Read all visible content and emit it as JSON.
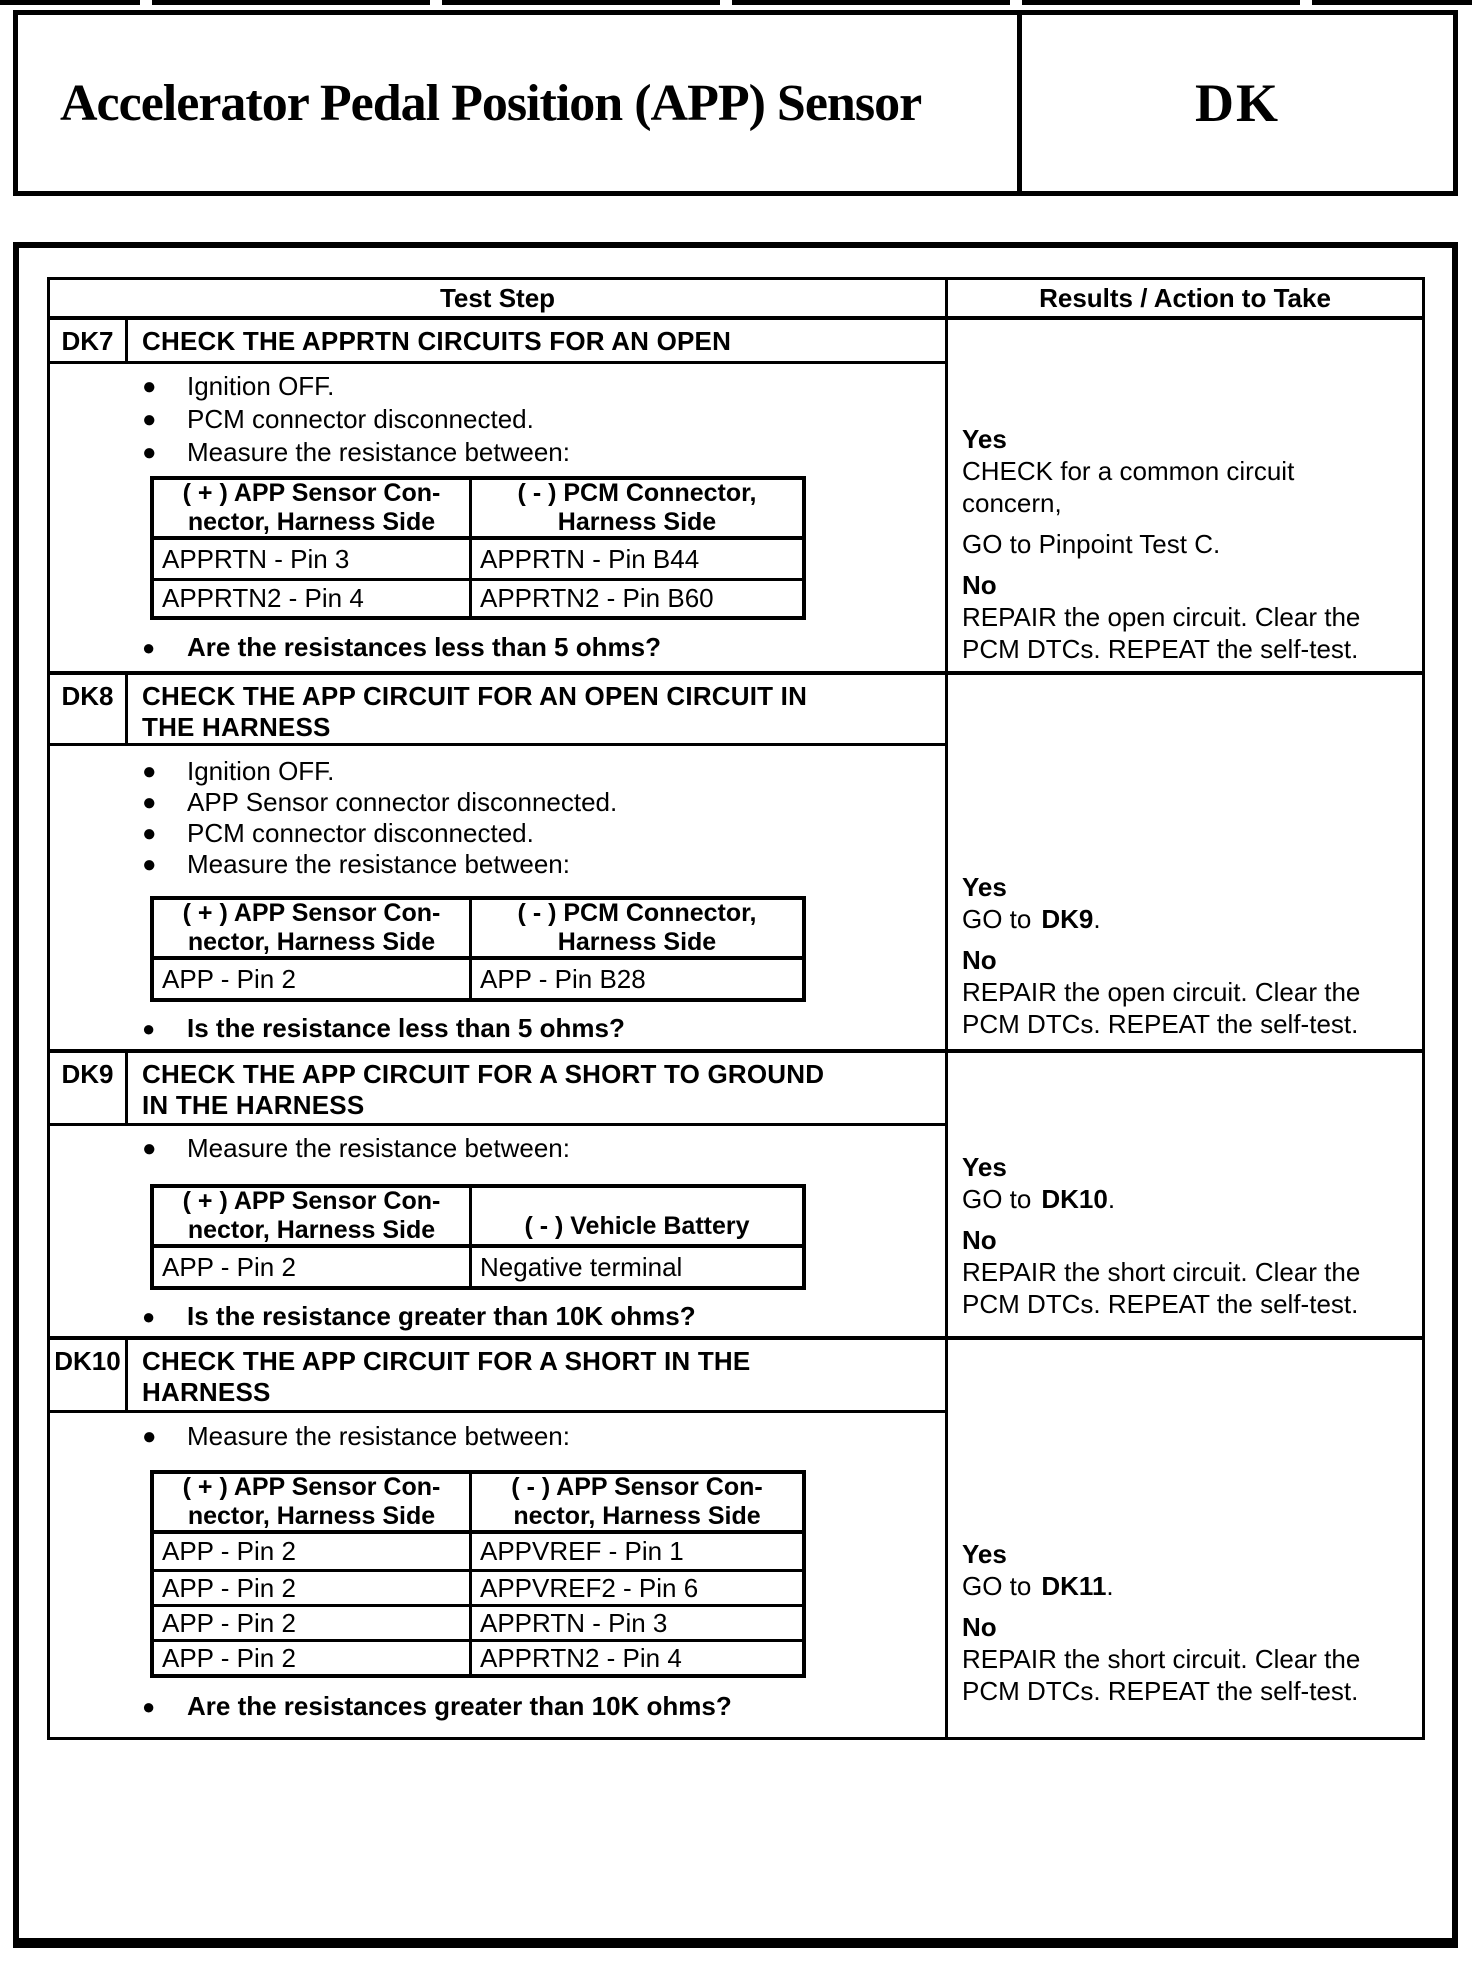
{
  "header": {
    "title": "Accelerator Pedal Position (APP) Sensor",
    "code": "DK"
  },
  "table": {
    "test_step_header": "Test Step",
    "results_header": "Results / Action to Take",
    "sections": [
      {
        "id": "DK7",
        "title_lines": [
          "CHECK THE APPRTN CIRCUITS FOR AN OPEN"
        ],
        "bullets": [
          "Ignition OFF.",
          "PCM connector disconnected.",
          "Measure the resistance between:"
        ],
        "measure_table": {
          "col1_header_lines": [
            "( + ) APP Sensor Con-",
            "nector, Harness Side"
          ],
          "col2_header_lines": [
            "( - ) PCM Connector,",
            "Harness Side"
          ],
          "rows": [
            [
              "APPRTN - Pin 3",
              "APPRTN - Pin B44"
            ],
            [
              "APPRTN2 - Pin 4",
              "APPRTN2 - Pin B60"
            ]
          ]
        },
        "question": "Are the resistances less than 5 ohms?",
        "results": [
          {
            "answer": "Yes"
          },
          {
            "lines": [
              "CHECK for a common circuit",
              "concern,"
            ]
          },
          {
            "lines": [
              "GO to Pinpoint Test C."
            ],
            "gap": true
          },
          {
            "answer": "No",
            "gap": true
          },
          {
            "lines": [
              "REPAIR the open circuit. Clear the",
              "PCM DTCs. REPEAT the self-test."
            ]
          }
        ]
      },
      {
        "id": "DK8",
        "title_lines": [
          "CHECK THE APP CIRCUIT FOR AN OPEN CIRCUIT IN",
          "THE HARNESS"
        ],
        "bullets": [
          "Ignition OFF.",
          "APP Sensor connector disconnected.",
          "PCM connector disconnected.",
          "Measure the resistance between:"
        ],
        "measure_table": {
          "col1_header_lines": [
            "( + ) APP Sensor Con-",
            "nector, Harness Side"
          ],
          "col2_header_lines": [
            "( - ) PCM Connector,",
            "Harness Side"
          ],
          "rows": [
            [
              "APP - Pin 2",
              "APP - Pin B28"
            ]
          ]
        },
        "question": "Is the resistance less than 5 ohms?",
        "results": [
          {
            "answer": "Yes"
          },
          {
            "goto": {
              "prefix": "GO to",
              "target": "DK9",
              "suffix": "."
            }
          },
          {
            "answer": "No",
            "gap": true
          },
          {
            "lines": [
              "REPAIR the open circuit. Clear the",
              "PCM DTCs. REPEAT the self-test."
            ]
          }
        ]
      },
      {
        "id": "DK9",
        "title_lines": [
          "CHECK THE APP CIRCUIT FOR A SHORT TO GROUND",
          "IN THE HARNESS"
        ],
        "bullets": [
          "Measure the resistance between:"
        ],
        "measure_table": {
          "col1_header_lines": [
            "( + ) APP Sensor Con-",
            "nector, Harness Side"
          ],
          "col2_header_lines": [
            "( - ) Vehicle Battery"
          ],
          "rows": [
            [
              "APP - Pin 2",
              "Negative terminal"
            ]
          ]
        },
        "question": "Is the resistance greater than 10K ohms?",
        "results": [
          {
            "answer": "Yes"
          },
          {
            "goto": {
              "prefix": "GO to",
              "target": "DK10",
              "suffix": "."
            }
          },
          {
            "answer": "No",
            "gap": true
          },
          {
            "lines": [
              "REPAIR the short circuit. Clear the",
              "PCM DTCs. REPEAT the self-test."
            ]
          }
        ]
      },
      {
        "id": "DK10",
        "title_lines": [
          "CHECK THE APP CIRCUIT FOR A SHORT IN THE",
          "HARNESS"
        ],
        "bullets": [
          "Measure the resistance between:"
        ],
        "measure_table": {
          "col1_header_lines": [
            "( + ) APP Sensor Con-",
            "nector, Harness Side"
          ],
          "col2_header_lines": [
            "( - ) APP Sensor Con-",
            "nector, Harness Side"
          ],
          "rows": [
            [
              "APP - Pin 2",
              "APPVREF - Pin 1"
            ],
            [
              "APP - Pin 2",
              "APPVREF2 - Pin 6"
            ],
            [
              "APP - Pin 2",
              "APPRTN - Pin 3"
            ],
            [
              "APP - Pin 2",
              "APPRTN2 - Pin 4"
            ]
          ]
        },
        "question": "Are the resistances greater than 10K ohms?",
        "results": [
          {
            "answer": "Yes"
          },
          {
            "goto": {
              "prefix": "GO to",
              "target": "DK11",
              "suffix": "."
            }
          },
          {
            "answer": "No",
            "gap": true
          },
          {
            "lines": [
              "REPAIR the short circuit. Clear the",
              "PCM DTCs. REPEAT the self-test."
            ]
          }
        ]
      }
    ]
  },
  "colors": {
    "ink": "#000000",
    "paper": "#ffffff"
  }
}
